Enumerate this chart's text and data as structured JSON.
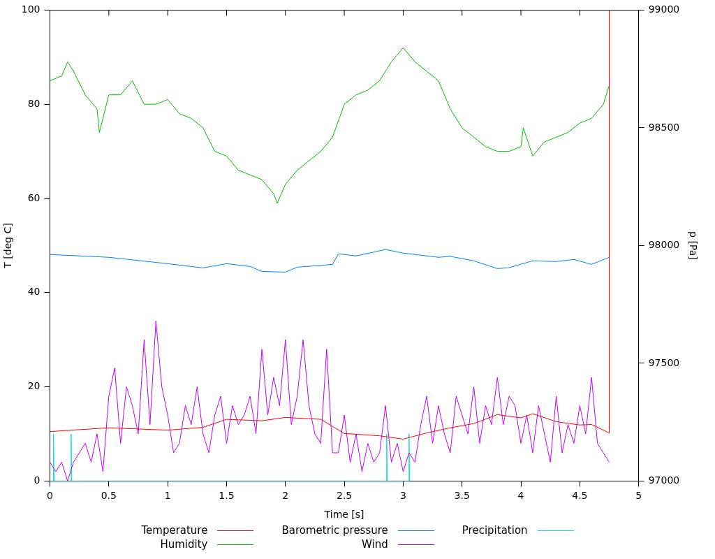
{
  "chart_data": {
    "type": "line",
    "xlabel": "Time [s]",
    "ylabel": "T [deg C]",
    "y2label": "p [Pa]",
    "xlim": [
      0,
      5
    ],
    "xticks": [
      0,
      0.5,
      1,
      1.5,
      2,
      2.5,
      3,
      3.5,
      4,
      4.5,
      5
    ],
    "ylim": [
      0,
      100
    ],
    "yticks": [
      0,
      20,
      40,
      60,
      80,
      100
    ],
    "y2lim": [
      97000,
      99000
    ],
    "y2ticks": [
      97000,
      97500,
      98000,
      98500,
      99000
    ],
    "grid": false,
    "legend": "bottom",
    "marker": "none",
    "line_style": "solid",
    "series": [
      {
        "name": "Temperature",
        "color": "#ff0000",
        "x": [
          0,
          0.5,
          1,
          1.3,
          1.5,
          1.8,
          2,
          2.3,
          2.5,
          2.8,
          3,
          3.2,
          3.4,
          3.6,
          3.8,
          4,
          4.1,
          4.3,
          4.5,
          4.6,
          4.75,
          4.75
        ],
        "values": [
          10.5,
          11.3,
          10.8,
          11.4,
          13.1,
          12.8,
          13.5,
          13.1,
          10.1,
          9.6,
          8.9,
          10.2,
          11.3,
          12.2,
          14.1,
          13.4,
          14.3,
          12.6,
          11.9,
          12,
          10.2,
          100
        ]
      },
      {
        "name": "Humidity",
        "color": "#00c000",
        "x": [
          0,
          0.1,
          0.15,
          0.2,
          0.3,
          0.4,
          0.42,
          0.5,
          0.6,
          0.7,
          0.8,
          0.9,
          1,
          1.1,
          1.2,
          1.3,
          1.4,
          1.5,
          1.6,
          1.7,
          1.8,
          1.9,
          1.93,
          2,
          2.1,
          2.2,
          2.3,
          2.4,
          2.5,
          2.6,
          2.7,
          2.8,
          2.9,
          3,
          3.1,
          3.2,
          3.3,
          3.4,
          3.5,
          3.6,
          3.7,
          3.8,
          3.9,
          4,
          4.02,
          4.1,
          4.2,
          4.3,
          4.4,
          4.5,
          4.6,
          4.7,
          4.75
        ],
        "values": [
          85,
          86,
          89,
          87,
          82,
          79,
          74,
          82,
          82,
          85,
          80,
          80,
          81,
          78,
          77,
          75,
          70,
          69,
          66,
          65,
          64,
          61,
          59,
          63,
          66,
          68,
          70,
          73,
          80,
          82,
          83,
          85,
          89,
          92,
          89,
          87,
          85,
          79,
          75,
          73,
          71,
          70,
          70,
          71,
          75,
          69,
          72,
          73,
          74,
          76,
          77,
          80,
          84
        ]
      },
      {
        "name": "Barometric pressure",
        "color": "#0080ff",
        "axis": "y2",
        "x": [
          0,
          0.5,
          1,
          1.3,
          1.5,
          1.7,
          1.8,
          2,
          2.1,
          2.4,
          2.45,
          2.6,
          2.85,
          3,
          3.3,
          3.4,
          3.6,
          3.8,
          3.9,
          4.1,
          4.3,
          4.45,
          4.6,
          4.75
        ],
        "values": [
          97962,
          97950,
          97923,
          97905,
          97923,
          97911,
          97890,
          97887,
          97908,
          97920,
          97965,
          97956,
          97983,
          97968,
          97950,
          97954,
          97935,
          97902,
          97906,
          97935,
          97932,
          97941,
          97920,
          97950
        ]
      },
      {
        "name": "Wind",
        "color": "#c000ff",
        "x": [
          0,
          0.05,
          0.1,
          0.15,
          0.2,
          0.25,
          0.3,
          0.35,
          0.4,
          0.45,
          0.5,
          0.55,
          0.6,
          0.65,
          0.7,
          0.75,
          0.8,
          0.85,
          0.9,
          0.95,
          1,
          1.05,
          1.1,
          1.15,
          1.2,
          1.25,
          1.3,
          1.35,
          1.4,
          1.45,
          1.5,
          1.55,
          1.6,
          1.65,
          1.7,
          1.75,
          1.8,
          1.85,
          1.9,
          1.95,
          2,
          2.05,
          2.1,
          2.15,
          2.2,
          2.25,
          2.3,
          2.35,
          2.4,
          2.45,
          2.5,
          2.55,
          2.6,
          2.65,
          2.7,
          2.75,
          2.8,
          2.85,
          2.9,
          2.95,
          3,
          3.05,
          3.1,
          3.15,
          3.2,
          3.25,
          3.3,
          3.35,
          3.4,
          3.45,
          3.5,
          3.55,
          3.6,
          3.65,
          3.7,
          3.75,
          3.8,
          3.85,
          3.9,
          3.95,
          4,
          4.05,
          4.1,
          4.15,
          4.2,
          4.25,
          4.3,
          4.35,
          4.4,
          4.45,
          4.5,
          4.55,
          4.6,
          4.65,
          4.7,
          4.75
        ],
        "values": [
          4,
          2,
          4,
          0,
          4,
          6,
          8,
          4,
          10,
          2,
          18,
          24,
          8,
          20,
          16,
          10,
          30,
          12,
          34,
          20,
          14,
          6,
          8,
          16,
          12,
          20,
          10,
          6,
          14,
          18,
          8,
          16,
          12,
          14,
          18,
          10,
          28,
          14,
          22,
          16,
          30,
          12,
          18,
          30,
          16,
          10,
          8,
          28,
          6,
          6,
          14,
          4,
          10,
          2,
          8,
          4,
          6,
          16,
          4,
          8,
          2,
          6,
          4,
          12,
          18,
          8,
          16,
          10,
          6,
          18,
          14,
          10,
          20,
          8,
          16,
          12,
          22,
          12,
          18,
          16,
          8,
          14,
          6,
          16,
          10,
          4,
          18,
          6,
          12,
          8,
          16,
          10,
          22,
          8,
          6,
          4
        ]
      },
      {
        "name": "Precipitation",
        "color": "#00e0e0",
        "x": [
          0,
          0.03,
          0.03,
          0.035,
          0.18,
          0.18,
          0.185,
          2.86,
          2.86,
          2.865,
          3.05,
          3.05,
          3.055
        ],
        "values": [
          0,
          0,
          10,
          0,
          0,
          10,
          0,
          0,
          10,
          0,
          0,
          10,
          0
        ]
      }
    ]
  }
}
